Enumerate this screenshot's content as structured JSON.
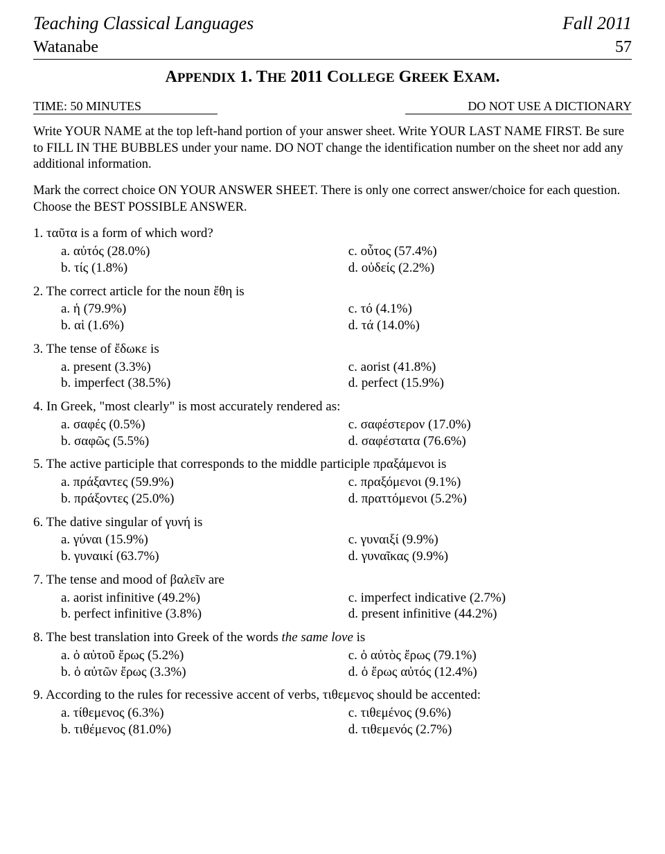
{
  "header": {
    "journal": "Teaching Classical Languages",
    "issue": "Fall 2011",
    "author": "Watanabe",
    "page": "57"
  },
  "appendix": {
    "label": "Appendix 1. The 2011 College Greek Exam.",
    "time_label": "TIME: 50 MINUTES",
    "dict_label": "DO NOT USE A DICTIONARY"
  },
  "instructions": {
    "p1": "Write YOUR NAME at the top left-hand portion of your answer sheet. Write YOUR LAST NAME FIRST. Be sure to FILL IN THE BUBBLES under your name. DO NOT change the identification number on the sheet nor add any additional information.",
    "p2": "Mark the correct choice ON YOUR ANSWER SHEET. There is only one correct answer/choice for each question. Choose the BEST POSSIBLE ANSWER."
  },
  "questions": [
    {
      "n": "1",
      "stem": "ταῦτα is a form of which word?",
      "a": "a. αὐτός (28.0%)",
      "b": "b. τίς (1.8%)",
      "c": "c. οὗτος (57.4%)",
      "d": "d. οὐδείς (2.2%)"
    },
    {
      "n": "2",
      "stem": "The correct article for the noun ἔθη is",
      "a": "a. ἡ (79.9%)",
      "b": "b. αἱ (1.6%)",
      "c": "c. τό (4.1%)",
      "d": "d. τά (14.0%)"
    },
    {
      "n": "3",
      "stem": "The tense of ἔδωκε is",
      "a": "a. present (3.3%)",
      "b": "b. imperfect (38.5%)",
      "c": "c. aorist (41.8%)",
      "d": "d. perfect (15.9%)"
    },
    {
      "n": "4",
      "stem_pre": "In Greek, \"most clearly\" is most accurately rendered as:",
      "a": "a. σαφές (0.5%)",
      "b": "b. σαφῶς (5.5%)",
      "c": "c. σαφέστερον (17.0%)",
      "d": "d. σαφέστατα (76.6%)"
    },
    {
      "n": "5",
      "stem": "The active participle that corresponds to the middle participle πραξάμενοι is",
      "a": "a. πράξαντες (59.9%)",
      "b": "b. πράξοντες (25.0%)",
      "c": "c. πραξόμενοι (9.1%)",
      "d": "d. πραττόμενοι (5.2%)"
    },
    {
      "n": "6",
      "stem": "The dative singular of γυνή is",
      "a": "a. γύναι (15.9%)",
      "b": "b. γυναικί (63.7%)",
      "c": "c. γυναιξί (9.9%)",
      "d": "d. γυναῖκας (9.9%)"
    },
    {
      "n": "7",
      "stem": "The tense and mood of βαλεῖν are",
      "a": "a. aorist infinitive (49.2%)",
      "b": "b. perfect infinitive (3.8%)",
      "c": "c. imperfect indicative (2.7%)",
      "d": "d. present infinitive (44.2%)"
    },
    {
      "n": "8",
      "stem_pre": "The best translation into Greek of the words ",
      "stem_ital": "the same love",
      "stem_post": " is",
      "a": "a. ὁ αὐτοῦ ἔρως (5.2%)",
      "b": "b. ὁ αὐτῶν ἔρως (3.3%)",
      "c": "c. ὁ αὐτὸς ἔρως (79.1%)",
      "d": "d. ὁ ἔρως αὐτός (12.4%)"
    },
    {
      "n": "9",
      "stem": "According to the rules for recessive accent of verbs, τιθεμενος should be accented:",
      "a": "a. τίθεμενος    (6.3%)",
      "b": "b. τιθέμενος    (81.0%)",
      "c": "c. τιθεμένος (9.6%)",
      "d": "d. τιθεμενός (2.7%)"
    }
  ]
}
